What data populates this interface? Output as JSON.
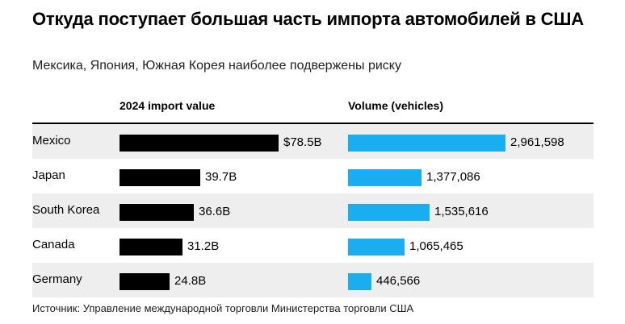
{
  "chart_data": {
    "type": "bar",
    "title": "Откуда поступает большая часть импорта автомобилей в США",
    "subtitle": "Мексика, Япония, Южная Корея наиболее подвержены риску",
    "categories": [
      "Mexico",
      "Japan",
      "South Korea",
      "Canada",
      "Germany"
    ],
    "series": [
      {
        "name": "2024 import value",
        "unit": "B USD",
        "values": [
          78.5,
          39.7,
          36.6,
          31.2,
          24.8
        ],
        "labels": [
          "$78.5B",
          "39.7B",
          "36.6B",
          "31.2B",
          "24.8B"
        ],
        "color": "#000000"
      },
      {
        "name": "Volume (vehicles)",
        "unit": "vehicles",
        "values": [
          2961598,
          1377086,
          1535616,
          1065465,
          446566
        ],
        "labels": [
          "2,961,598",
          "1,377,086",
          "1,535,616",
          "1,065,465",
          "446,566"
        ],
        "color": "#1aadf0"
      }
    ],
    "source": "Источник: Управление международной торговли Министерства торговли США"
  },
  "colors": {
    "row_shade": "#eeeeee"
  }
}
